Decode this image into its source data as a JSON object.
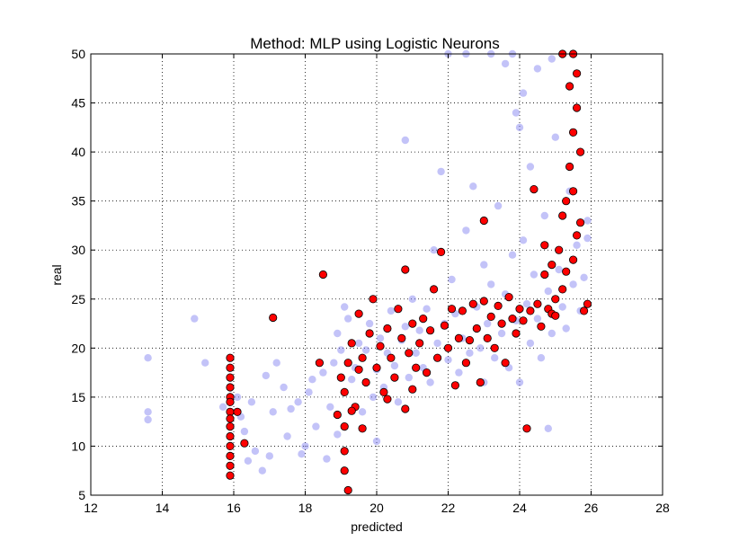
{
  "chart_data": {
    "type": "scatter",
    "title": "Method: MLP using Logistic Neurons",
    "xlabel": "predicted",
    "ylabel": "real",
    "xlim": [
      12,
      28
    ],
    "ylim": [
      5,
      50
    ],
    "xticks": [
      "12",
      "14",
      "16",
      "18",
      "20",
      "22",
      "24",
      "26",
      "28"
    ],
    "yticks": [
      "5",
      "10",
      "15",
      "20",
      "25",
      "30",
      "35",
      "40",
      "45",
      "50"
    ],
    "grid": true,
    "legend": "none",
    "series": [
      {
        "color": "#7b7bf0",
        "opacity": 0.45,
        "edge": "none",
        "points": [
          [
            13.6,
            19.0
          ],
          [
            13.6,
            13.5
          ],
          [
            13.6,
            12.7
          ],
          [
            14.9,
            23.0
          ],
          [
            15.2,
            18.5
          ],
          [
            15.7,
            14.0
          ],
          [
            16.1,
            15.0
          ],
          [
            16.2,
            13.0
          ],
          [
            16.3,
            11.5
          ],
          [
            16.4,
            8.5
          ],
          [
            16.5,
            14.5
          ],
          [
            16.6,
            9.5
          ],
          [
            16.8,
            7.5
          ],
          [
            16.9,
            17.2
          ],
          [
            17.0,
            9.0
          ],
          [
            17.1,
            13.5
          ],
          [
            17.2,
            18.5
          ],
          [
            17.4,
            16.0
          ],
          [
            17.5,
            11.0
          ],
          [
            17.6,
            13.8
          ],
          [
            17.8,
            14.5
          ],
          [
            17.9,
            9.2
          ],
          [
            18.0,
            10.0
          ],
          [
            18.1,
            15.5
          ],
          [
            18.2,
            16.8
          ],
          [
            18.3,
            12.0
          ],
          [
            18.5,
            17.5
          ],
          [
            18.6,
            8.7
          ],
          [
            18.7,
            14.0
          ],
          [
            18.8,
            18.5
          ],
          [
            18.9,
            11.2
          ],
          [
            18.9,
            21.5
          ],
          [
            19.0,
            19.8
          ],
          [
            19.1,
            24.2
          ],
          [
            19.2,
            23.0
          ],
          [
            19.3,
            16.8
          ],
          [
            19.4,
            18.0
          ],
          [
            19.5,
            20.5
          ],
          [
            19.6,
            13.5
          ],
          [
            19.7,
            19.8
          ],
          [
            19.8,
            22.5
          ],
          [
            19.9,
            15.0
          ],
          [
            20.0,
            17.8
          ],
          [
            20.0,
            10.5
          ],
          [
            20.1,
            21.0
          ],
          [
            20.2,
            16.0
          ],
          [
            20.3,
            19.5
          ],
          [
            20.4,
            23.8
          ],
          [
            20.5,
            18.2
          ],
          [
            20.6,
            14.5
          ],
          [
            20.7,
            20.8
          ],
          [
            20.8,
            22.2
          ],
          [
            20.8,
            41.2
          ],
          [
            20.9,
            17.0
          ],
          [
            21.0,
            25.0
          ],
          [
            21.1,
            19.5
          ],
          [
            21.2,
            21.8
          ],
          [
            21.3,
            18.0
          ],
          [
            21.4,
            24.0
          ],
          [
            21.5,
            16.5
          ],
          [
            21.6,
            30.0
          ],
          [
            21.7,
            20.5
          ],
          [
            21.8,
            38.0
          ],
          [
            21.9,
            22.5
          ],
          [
            22.0,
            18.8
          ],
          [
            22.1,
            27.0
          ],
          [
            22.2,
            23.5
          ],
          [
            22.3,
            17.5
          ],
          [
            22.4,
            21.0
          ],
          [
            22.5,
            32.0
          ],
          [
            22.6,
            19.5
          ],
          [
            22.7,
            36.5
          ],
          [
            22.8,
            24.2
          ],
          [
            22.9,
            20.0
          ],
          [
            23.0,
            28.5
          ],
          [
            23.0,
            16.5
          ],
          [
            23.1,
            22.5
          ],
          [
            23.2,
            26.5
          ],
          [
            23.3,
            19.0
          ],
          [
            23.4,
            34.5
          ],
          [
            23.5,
            21.5
          ],
          [
            23.6,
            25.5
          ],
          [
            23.7,
            18.0
          ],
          [
            23.8,
            29.5
          ],
          [
            23.9,
            44.0
          ],
          [
            23.9,
            22.8
          ],
          [
            24.0,
            16.5
          ],
          [
            24.1,
            31.0
          ],
          [
            24.2,
            24.5
          ],
          [
            24.3,
            20.5
          ],
          [
            24.3,
            38.5
          ],
          [
            24.4,
            27.5
          ],
          [
            24.5,
            23.0
          ],
          [
            24.6,
            19.0
          ],
          [
            24.7,
            33.5
          ],
          [
            24.8,
            25.8
          ],
          [
            24.8,
            11.8
          ],
          [
            24.9,
            21.5
          ],
          [
            25.0,
            41.5
          ],
          [
            25.1,
            28.0
          ],
          [
            25.2,
            24.2
          ],
          [
            25.3,
            22.0
          ],
          [
            25.4,
            36.0
          ],
          [
            25.5,
            26.5
          ],
          [
            25.6,
            30.5
          ],
          [
            25.7,
            23.8
          ],
          [
            25.8,
            27.2
          ],
          [
            25.9,
            33.0
          ],
          [
            25.9,
            31.2
          ],
          [
            22.0,
            50.0
          ],
          [
            22.5,
            50.0
          ],
          [
            23.2,
            50.0
          ],
          [
            23.8,
            50.0
          ],
          [
            24.5,
            48.5
          ],
          [
            24.1,
            46.0
          ],
          [
            23.6,
            49.0
          ],
          [
            24.0,
            42.5
          ],
          [
            24.9,
            49.5
          ]
        ]
      },
      {
        "color": "#ff0000",
        "opacity": 1,
        "edge": "#000000",
        "points": [
          [
            15.9,
            19.0
          ],
          [
            15.9,
            18.0
          ],
          [
            15.9,
            17.0
          ],
          [
            15.9,
            16.0
          ],
          [
            15.9,
            15.0
          ],
          [
            15.9,
            14.5
          ],
          [
            15.9,
            13.5
          ],
          [
            15.9,
            12.8
          ],
          [
            15.9,
            12.0
          ],
          [
            15.9,
            11.0
          ],
          [
            15.9,
            10.0
          ],
          [
            15.9,
            9.0
          ],
          [
            15.9,
            8.0
          ],
          [
            15.9,
            7.0
          ],
          [
            16.1,
            13.5
          ],
          [
            16.3,
            10.3
          ],
          [
            17.1,
            23.1
          ],
          [
            18.4,
            18.5
          ],
          [
            18.5,
            27.5
          ],
          [
            18.9,
            13.2
          ],
          [
            19.0,
            17.0
          ],
          [
            19.1,
            15.5
          ],
          [
            19.1,
            12.0
          ],
          [
            19.1,
            9.5
          ],
          [
            19.1,
            7.5
          ],
          [
            19.2,
            5.5
          ],
          [
            19.2,
            18.5
          ],
          [
            19.3,
            20.5
          ],
          [
            19.4,
            14.0
          ],
          [
            19.5,
            17.8
          ],
          [
            19.5,
            23.5
          ],
          [
            19.6,
            19.0
          ],
          [
            19.7,
            16.5
          ],
          [
            19.8,
            21.5
          ],
          [
            19.9,
            25.0
          ],
          [
            20.0,
            18.0
          ],
          [
            20.1,
            20.2
          ],
          [
            20.2,
            15.5
          ],
          [
            20.3,
            22.0
          ],
          [
            20.4,
            19.0
          ],
          [
            20.5,
            17.0
          ],
          [
            20.6,
            24.0
          ],
          [
            20.7,
            21.0
          ],
          [
            20.8,
            13.8
          ],
          [
            20.8,
            28.0
          ],
          [
            20.9,
            19.5
          ],
          [
            21.0,
            22.5
          ],
          [
            21.1,
            18.0
          ],
          [
            21.2,
            20.5
          ],
          [
            21.3,
            23.0
          ],
          [
            21.4,
            17.5
          ],
          [
            21.5,
            21.8
          ],
          [
            21.6,
            26.0
          ],
          [
            21.7,
            19.0
          ],
          [
            21.8,
            29.8
          ],
          [
            21.9,
            22.3
          ],
          [
            22.0,
            20.0
          ],
          [
            22.1,
            24.0
          ],
          [
            22.2,
            16.2
          ],
          [
            22.3,
            21.0
          ],
          [
            22.4,
            23.8
          ],
          [
            22.5,
            18.5
          ],
          [
            22.6,
            20.8
          ],
          [
            22.7,
            24.5
          ],
          [
            22.8,
            22.0
          ],
          [
            22.9,
            16.5
          ],
          [
            23.0,
            24.8
          ],
          [
            23.1,
            21.0
          ],
          [
            23.2,
            23.2
          ],
          [
            23.3,
            20.0
          ],
          [
            23.4,
            24.3
          ],
          [
            23.5,
            22.5
          ],
          [
            23.6,
            18.5
          ],
          [
            23.7,
            25.2
          ],
          [
            23.8,
            23.0
          ],
          [
            23.9,
            21.5
          ],
          [
            24.0,
            24.0
          ],
          [
            24.1,
            22.8
          ],
          [
            24.2,
            11.8
          ],
          [
            24.3,
            23.8
          ],
          [
            24.4,
            36.2
          ],
          [
            24.5,
            24.5
          ],
          [
            24.6,
            22.2
          ],
          [
            24.7,
            27.5
          ],
          [
            24.8,
            24.0
          ],
          [
            24.9,
            23.5
          ],
          [
            25.0,
            25.0
          ],
          [
            25.1,
            30.0
          ],
          [
            25.2,
            33.5
          ],
          [
            25.3,
            35.0
          ],
          [
            25.4,
            38.5
          ],
          [
            25.4,
            46.7
          ],
          [
            25.5,
            42.0
          ],
          [
            25.5,
            36.0
          ],
          [
            25.6,
            31.5
          ],
          [
            25.5,
            29.0
          ],
          [
            25.3,
            27.8
          ],
          [
            25.6,
            44.5
          ],
          [
            25.6,
            48.0
          ],
          [
            25.7,
            40.0
          ],
          [
            25.5,
            50.0
          ],
          [
            25.2,
            50.0
          ],
          [
            24.9,
            28.5
          ],
          [
            25.8,
            23.8
          ],
          [
            25.9,
            24.5
          ],
          [
            25.0,
            23.3
          ],
          [
            25.7,
            32.8
          ],
          [
            25.2,
            26.0
          ],
          [
            23.0,
            33.0
          ],
          [
            24.7,
            30.5
          ],
          [
            19.3,
            13.6
          ],
          [
            19.6,
            11.8
          ],
          [
            20.3,
            14.8
          ],
          [
            21.0,
            15.8
          ]
        ]
      }
    ]
  }
}
